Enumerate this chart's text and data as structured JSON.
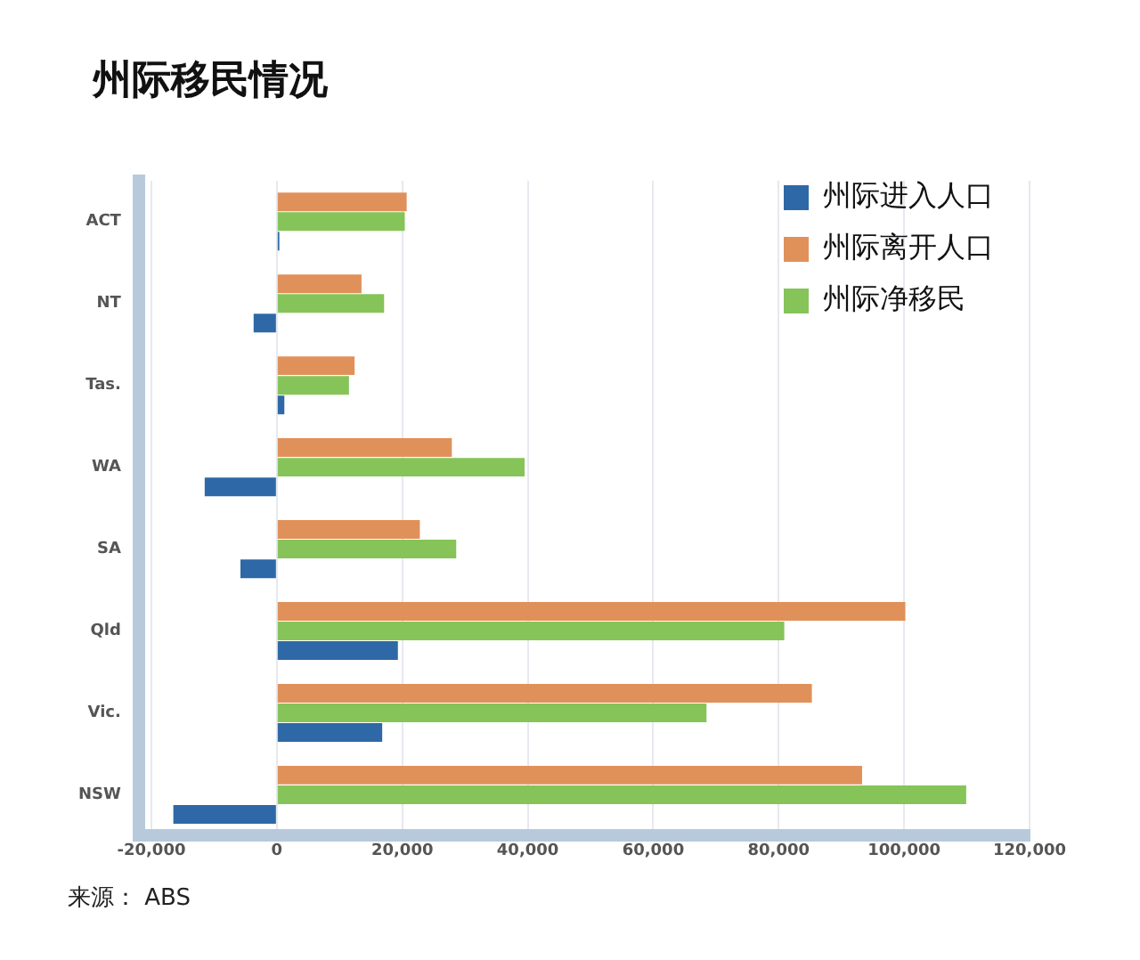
{
  "chart_data": {
    "type": "bar",
    "orientation": "horizontal",
    "title": "州际移民情况",
    "categories": [
      "ACT",
      "NT",
      "Tas.",
      "WA",
      "SA",
      "Qld",
      "Vic.",
      "NSW"
    ],
    "series": [
      {
        "name": "州际进入人口",
        "color": "#2e68a6",
        "values": [
          400,
          -3700,
          1200,
          -11500,
          -5800,
          19300,
          16800,
          -16500
        ]
      },
      {
        "name": "州际离开人口",
        "color": "#e0915a",
        "values": [
          20700,
          13500,
          12400,
          27900,
          22800,
          100200,
          85300,
          93300
        ]
      },
      {
        "name": "州际净移民",
        "color": "#86c45a",
        "values": [
          20400,
          17100,
          11500,
          39500,
          28600,
          80900,
          68500,
          109900
        ]
      }
    ],
    "xlim": [
      -22000,
      120000
    ],
    "xticks": [
      {
        "value": -20000,
        "label": "-20,000"
      },
      0,
      {
        "value": 20000,
        "label": "20,000"
      },
      {
        "value": 40000,
        "label": "40,000"
      },
      {
        "value": 60000,
        "label": "60,000"
      },
      {
        "value": 80000,
        "label": "80,000"
      },
      {
        "value": 100000,
        "label": "100,000"
      },
      {
        "value": 120000,
        "label": "120,000"
      }
    ],
    "grid": "x",
    "legend": "top right",
    "annotations": [
      "来源： ABS"
    ]
  }
}
